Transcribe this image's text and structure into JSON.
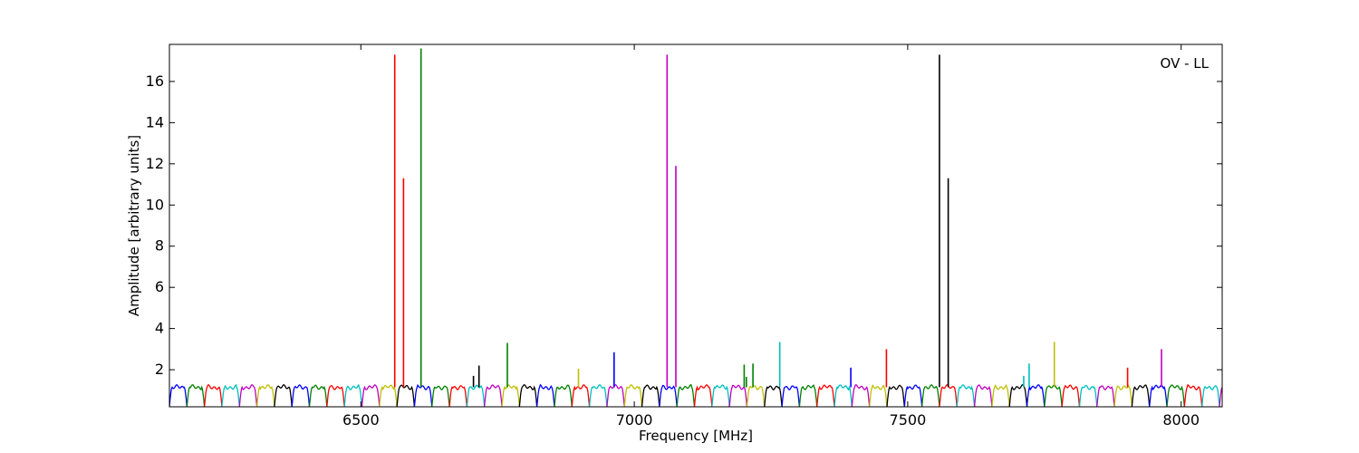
{
  "chart_data": {
    "type": "line",
    "title": "",
    "annotation": "OV - LL",
    "xlabel": "Frequency [MHz]",
    "ylabel": "Amplitude [arbitrary units]",
    "xlim": [
      6150,
      8075
    ],
    "ylim": [
      0.2,
      17.8
    ],
    "xticks": [
      6500,
      7000,
      7500,
      8000
    ],
    "yticks": [
      2,
      4,
      6,
      8,
      10,
      12,
      14,
      16
    ],
    "grid": false,
    "legend": "none",
    "subband_start": 6150,
    "subband_width": 32,
    "subband_baseline": 1.15,
    "colors": [
      "#0000ff",
      "#008000",
      "#ff0000",
      "#00bfbf",
      "#bf00bf",
      "#bfbf00",
      "#000000"
    ],
    "spikes": [
      {
        "x": 6562,
        "y": 17.3,
        "color": "#ff0000"
      },
      {
        "x": 6578,
        "y": 11.3,
        "color": "#ff0000"
      },
      {
        "x": 6610,
        "y": 17.6,
        "color": "#008000"
      },
      {
        "x": 6706,
        "y": 1.7,
        "color": "#000000"
      },
      {
        "x": 6716,
        "y": 2.2,
        "color": "#000000"
      },
      {
        "x": 6768,
        "y": 3.3,
        "color": "#008000"
      },
      {
        "x": 6898,
        "y": 2.05,
        "color": "#bfbf00"
      },
      {
        "x": 6963,
        "y": 2.85,
        "color": "#0000ff"
      },
      {
        "x": 7060,
        "y": 17.3,
        "color": "#bf00bf"
      },
      {
        "x": 7076,
        "y": 11.9,
        "color": "#bf00bf"
      },
      {
        "x": 7201,
        "y": 2.25,
        "color": "#008000"
      },
      {
        "x": 7205,
        "y": 1.65,
        "color": "#008000"
      },
      {
        "x": 7217,
        "y": 2.3,
        "color": "#008000"
      },
      {
        "x": 7266,
        "y": 3.35,
        "color": "#00bfbf"
      },
      {
        "x": 7396,
        "y": 2.1,
        "color": "#0000ff"
      },
      {
        "x": 7461,
        "y": 3.0,
        "color": "#ff0000"
      },
      {
        "x": 7558,
        "y": 17.3,
        "color": "#000000"
      },
      {
        "x": 7574,
        "y": 11.3,
        "color": "#000000"
      },
      {
        "x": 7712,
        "y": 1.7,
        "color": "#00bfbf"
      },
      {
        "x": 7722,
        "y": 2.3,
        "color": "#00bfbf"
      },
      {
        "x": 7768,
        "y": 3.35,
        "color": "#bfbf00"
      },
      {
        "x": 7902,
        "y": 2.1,
        "color": "#ff0000"
      },
      {
        "x": 7964,
        "y": 3.0,
        "color": "#bf00bf"
      }
    ]
  }
}
